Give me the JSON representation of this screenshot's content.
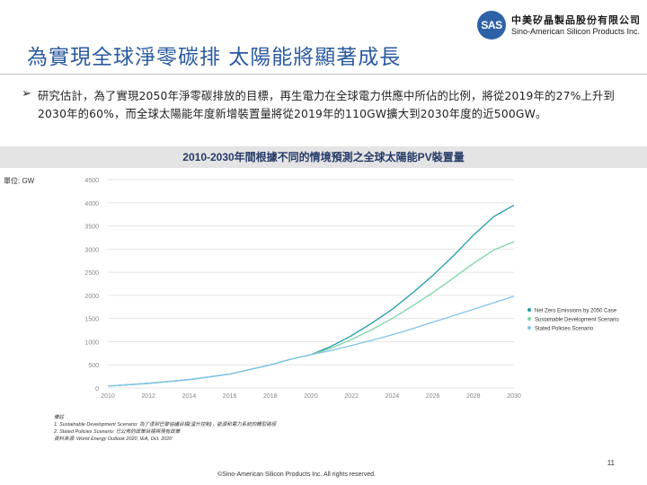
{
  "logo": {
    "badge": "SAS",
    "name_cn": "中美矽晶製品股份有限公司",
    "name_en": "Sino-American Silicon Products Inc."
  },
  "slide": {
    "title": "為實現全球淨零碳排 太陽能將顯著成長",
    "bullet": "研究估計，為了實現2050年淨零碳排放的目標，再生電力在全球電力供應中所佔的比例，將從2019年的27%上升到2030年的60%，而全球太陽能年度新增裝置量將從2019年的110GW擴大到2030年度的近500GW。",
    "unit": "單位: GW",
    "notes": [
      "備註",
      "1. Sustainable Development Scenario: 為了達到巴黎協議目標(溫升控制)，能源和電力系統的轉型路徑",
      "2. Stated Policies Scenario: 已公佈的政策目標與現有政策",
      "資料來源: World Energy Outlook 2020, IEA, Oct. 2020"
    ],
    "page_number": "11",
    "copyright": "©Sino-American Silicon Products Inc. All rights reserved."
  },
  "colors": {
    "title": "#2a5aa0",
    "series_nze": "#1f9bab",
    "series_sds": "#7fd6a8",
    "series_steps": "#82c3eb",
    "grid": "#e6e6e6",
    "tick": "#888888"
  },
  "chart_data": {
    "type": "line",
    "title": "2010-2030年間根據不同的情境預測之全球太陽能PV裝置量",
    "xlabel": "",
    "ylabel": "單位: GW",
    "xlim": [
      2010,
      2030
    ],
    "ylim": [
      0,
      4500
    ],
    "x_ticks": [
      2010,
      2012,
      2014,
      2016,
      2018,
      2020,
      2022,
      2024,
      2026,
      2028,
      2030
    ],
    "y_ticks": [
      0,
      500,
      1000,
      1500,
      2000,
      2500,
      3000,
      3500,
      4000,
      4500
    ],
    "legend_position": "right",
    "series": [
      {
        "name": "Net Zero Emissions by 2050 Case",
        "color": "#1f9bab",
        "x": [
          2010,
          2012,
          2014,
          2016,
          2018,
          2019,
          2020,
          2021,
          2022,
          2023,
          2024,
          2025,
          2026,
          2027,
          2028,
          2029,
          2030
        ],
        "values": [
          40,
          100,
          180,
          300,
          500,
          620,
          720,
          900,
          1130,
          1400,
          1700,
          2050,
          2430,
          2850,
          3300,
          3700,
          3950
        ]
      },
      {
        "name": "Sustainable Development Scenario",
        "color": "#7fd6a8",
        "x": [
          2010,
          2012,
          2014,
          2016,
          2018,
          2019,
          2020,
          2021,
          2022,
          2023,
          2024,
          2025,
          2026,
          2027,
          2028,
          2029,
          2030
        ],
        "values": [
          40,
          100,
          180,
          300,
          500,
          620,
          720,
          860,
          1050,
          1260,
          1500,
          1770,
          2060,
          2370,
          2690,
          2980,
          3160
        ]
      },
      {
        "name": "Stated Policies Scenario",
        "color": "#82c3eb",
        "x": [
          2010,
          2012,
          2014,
          2016,
          2018,
          2019,
          2020,
          2021,
          2022,
          2023,
          2024,
          2025,
          2026,
          2027,
          2028,
          2029,
          2030
        ],
        "values": [
          40,
          100,
          180,
          300,
          500,
          620,
          720,
          810,
          920,
          1030,
          1150,
          1280,
          1420,
          1560,
          1700,
          1840,
          1980
        ]
      }
    ]
  }
}
